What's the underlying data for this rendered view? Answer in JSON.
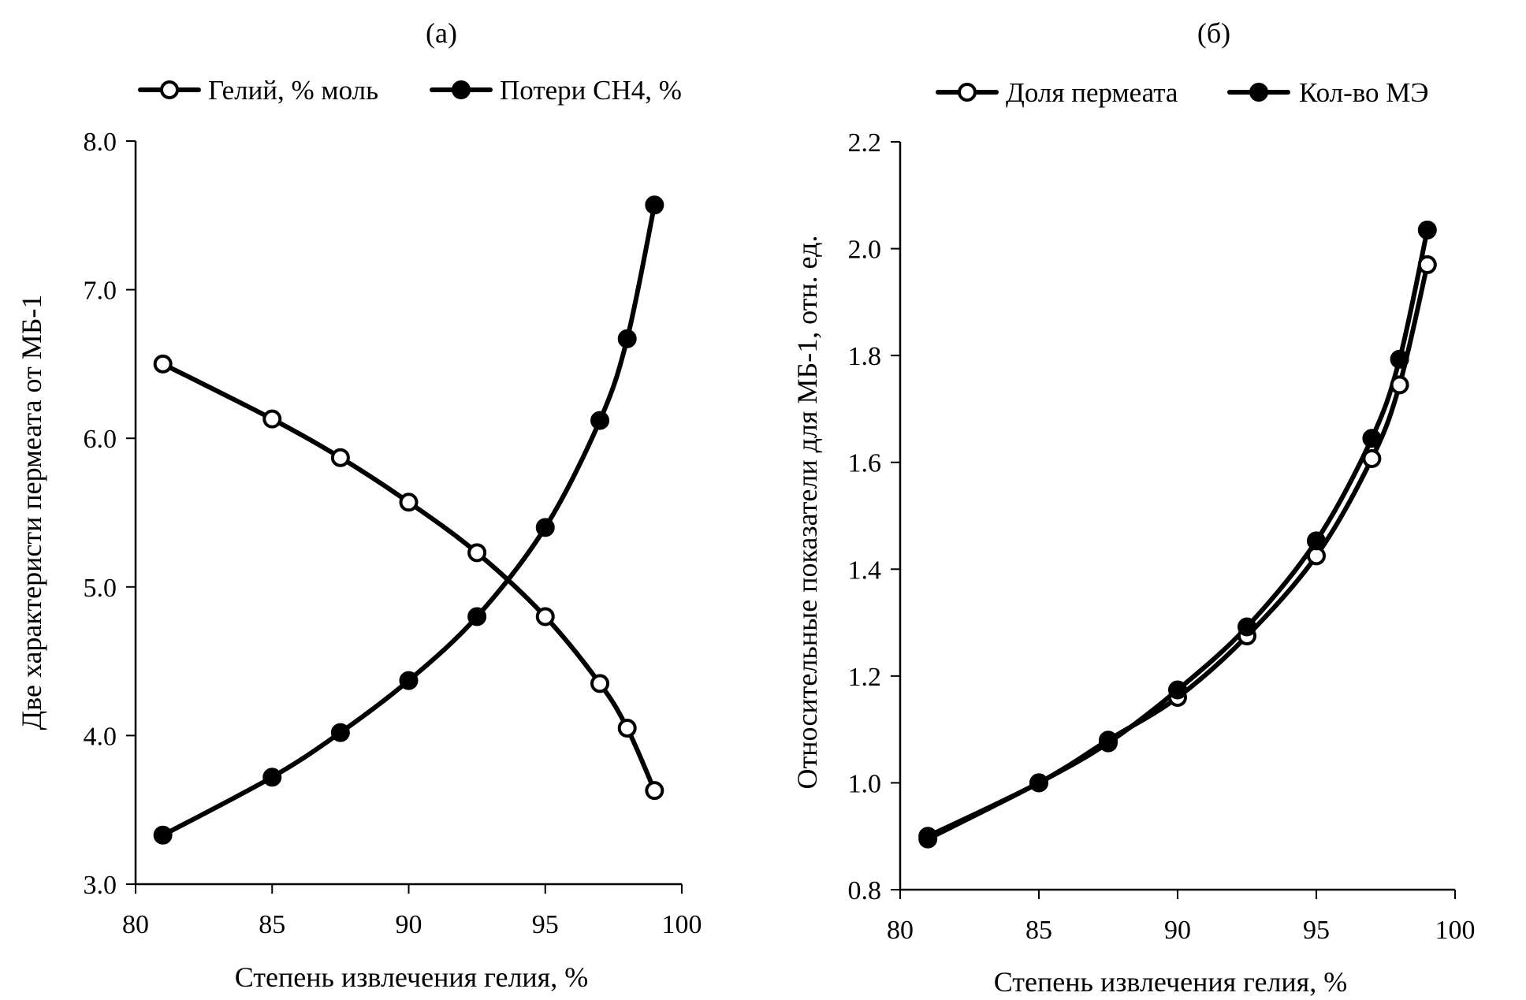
{
  "chart_data": [
    {
      "type": "line",
      "panel": "(a)",
      "title": "(a)",
      "xlabel": "Степень извлечения гелия, %",
      "ylabel": "Две характеристи пермеата  от МБ-1",
      "xlim": [
        80,
        100
      ],
      "ylim": [
        3.0,
        8.0
      ],
      "xticks": [
        80,
        85,
        90,
        95,
        100
      ],
      "xtick_labels": [
        "80",
        "85",
        "90",
        "95",
        "100"
      ],
      "yticks": [
        3.0,
        4.0,
        5.0,
        6.0,
        7.0,
        8.0
      ],
      "ytick_labels": [
        "3.0",
        "4.0",
        "5.0",
        "6.0",
        "7.0",
        "8.0"
      ],
      "grid": false,
      "legend_position": "top",
      "x": [
        81,
        85,
        87.5,
        90,
        92.5,
        95,
        97,
        98,
        99
      ],
      "series": [
        {
          "name": "Гелий, % моль",
          "marker": "open-circle",
          "values": [
            6.5,
            6.13,
            5.87,
            5.57,
            5.23,
            4.8,
            4.35,
            4.05,
            3.63
          ]
        },
        {
          "name": "Потери CH4, %",
          "marker": "filled-circle",
          "values": [
            3.33,
            3.72,
            4.02,
            4.37,
            4.8,
            5.4,
            6.12,
            6.67,
            7.57
          ]
        }
      ]
    },
    {
      "type": "line",
      "panel": "(б)",
      "title": "(б)",
      "xlabel": "Степень извлечения гелия, %",
      "ylabel": "Относительные показатели для МБ-1, отн. ед.",
      "xlim": [
        80,
        100
      ],
      "ylim": [
        0.8,
        2.2
      ],
      "xticks": [
        80,
        85,
        90,
        95,
        100
      ],
      "xtick_labels": [
        "80",
        "85",
        "90",
        "95",
        "100"
      ],
      "yticks": [
        0.8,
        1.0,
        1.2,
        1.4,
        1.6,
        1.8,
        2.0,
        2.2
      ],
      "ytick_labels": [
        "0.8",
        "1.0",
        "1.2",
        "1.4",
        "1.6",
        "1.8",
        "2.0",
        "2.2"
      ],
      "grid": false,
      "legend_position": "top",
      "x": [
        81,
        85,
        87.5,
        90,
        92.5,
        95,
        97,
        98,
        99
      ],
      "series": [
        {
          "name": "Доля пермеата",
          "marker": "open-circle",
          "values": [
            0.9,
            1.0,
            1.08,
            1.16,
            1.275,
            1.425,
            1.607,
            1.745,
            1.97
          ]
        },
        {
          "name": "Кол-во МЭ",
          "marker": "filled-circle",
          "values": [
            0.895,
            1.0,
            1.075,
            1.174,
            1.292,
            1.453,
            1.645,
            1.793,
            2.035
          ]
        }
      ]
    }
  ]
}
